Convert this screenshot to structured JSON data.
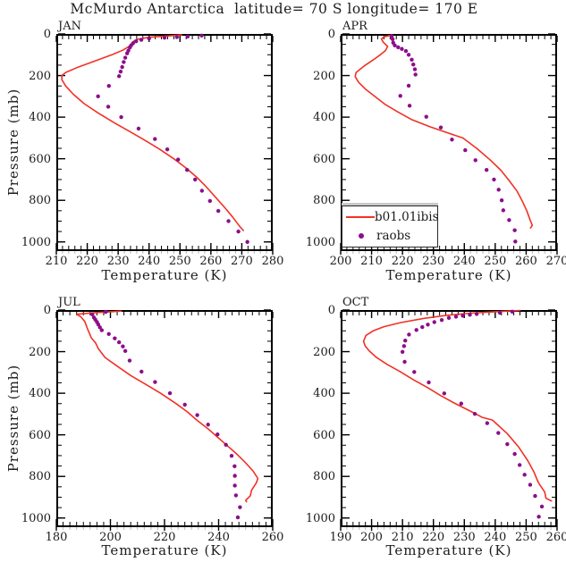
{
  "title": "McMurdo Antarctica  latitude= 70 S longitude= 170 E",
  "xlabel": "Temperature (K)",
  "ylabel": "Pressure (mb)",
  "colors": {
    "model": "#f13126",
    "obs": "#8b0e8b",
    "axis": "#000000",
    "minor_outward": "#b9b9b9"
  },
  "legend": {
    "entries": [
      {
        "label": "b01.01ibis",
        "type": "line"
      },
      {
        "label": "raobs",
        "type": "dot"
      }
    ]
  },
  "chart_data": [
    {
      "type": "line",
      "month": "JAN",
      "xlabel": "Temperature (K)",
      "ylabel": "Pressure (mb)",
      "xlim": [
        210,
        280
      ],
      "xticks": [
        210,
        220,
        230,
        240,
        250,
        260,
        270,
        280
      ],
      "xminor": 2,
      "ylim": [
        0,
        1044
      ],
      "yticks": [
        0,
        200,
        400,
        600,
        800,
        1000
      ],
      "yminor": 50,
      "y_axis_inverted": true,
      "grid": false,
      "series": [
        {
          "name": "b01.01ibis",
          "style": "line",
          "points": [
            [
              250.5,
              4
            ],
            [
              246,
              10
            ],
            [
              240,
              16
            ],
            [
              236.5,
              25
            ],
            [
              235,
              35
            ],
            [
              234.3,
              48
            ],
            [
              233.5,
              60
            ],
            [
              231.5,
              78
            ],
            [
              228,
              100
            ],
            [
              222.5,
              130
            ],
            [
              217,
              160
            ],
            [
              213,
              185
            ],
            [
              211.8,
              200
            ],
            [
              211.8,
              220
            ],
            [
              213,
              250
            ],
            [
              215.5,
              290
            ],
            [
              219,
              335
            ],
            [
              223.5,
              380
            ],
            [
              228.5,
              425
            ],
            [
              233.5,
              467
            ],
            [
              238.5,
              510
            ],
            [
              243.5,
              555
            ],
            [
              248,
              600
            ],
            [
              252,
              645
            ],
            [
              255.5,
              690
            ],
            [
              258.5,
              735
            ],
            [
              261.5,
              785
            ],
            [
              264.5,
              835
            ],
            [
              267,
              880
            ],
            [
              269.3,
              925
            ],
            [
              270.5,
              945
            ]
          ]
        },
        {
          "name": "raobs",
          "style": "scatter",
          "points": [
            [
              257,
              8
            ],
            [
              252.5,
              12
            ],
            [
              249,
              15
            ],
            [
              245,
              18
            ],
            [
              240,
              22
            ],
            [
              237.5,
              28
            ],
            [
              235.8,
              35
            ],
            [
              234.8,
              45
            ],
            [
              234.2,
              55
            ],
            [
              233.8,
              65
            ],
            [
              233.3,
              80
            ],
            [
              232.9,
              93
            ],
            [
              232.3,
              114
            ],
            [
              231.8,
              135
            ],
            [
              231.3,
              159
            ],
            [
              230.8,
              181
            ],
            [
              230.3,
              203
            ],
            [
              227,
              250
            ],
            [
              223.5,
              300
            ],
            [
              226.8,
              350
            ],
            [
              231,
              400
            ],
            [
              236.6,
              455
            ],
            [
              241.9,
              505
            ],
            [
              245.9,
              555
            ],
            [
              249.4,
              604
            ],
            [
              252.3,
              654
            ],
            [
              254.9,
              700
            ],
            [
              257.1,
              754
            ],
            [
              259.7,
              803
            ],
            [
              262.4,
              851
            ],
            [
              265.7,
              900
            ],
            [
              268.9,
              950
            ],
            [
              271.8,
              1000
            ]
          ]
        }
      ]
    },
    {
      "type": "line",
      "month": "APR",
      "xlabel": "Temperature (K)",
      "ylabel": "Pressure (mb)",
      "xlim": [
        200,
        270
      ],
      "xticks": [
        200,
        210,
        220,
        230,
        240,
        250,
        260,
        270
      ],
      "xminor": 2,
      "ylim": [
        0,
        1044
      ],
      "yticks": [
        0,
        200,
        400,
        600,
        800,
        1000
      ],
      "yminor": 50,
      "y_axis_inverted": true,
      "grid": false,
      "has_legend": true,
      "series": [
        {
          "name": "b01.01ibis",
          "style": "line",
          "points": [
            [
              216.3,
              6
            ],
            [
              214,
              14
            ],
            [
              213.2,
              24
            ],
            [
              213.8,
              40
            ],
            [
              215.2,
              60
            ],
            [
              214.5,
              80
            ],
            [
              212.8,
              100
            ],
            [
              210.5,
              125
            ],
            [
              207.5,
              155
            ],
            [
              205,
              185
            ],
            [
              204.7,
              205
            ],
            [
              205.8,
              233
            ],
            [
              208,
              265
            ],
            [
              211,
              300
            ],
            [
              214.5,
              340
            ],
            [
              218.5,
              375
            ],
            [
              223,
              412
            ],
            [
              228.7,
              445
            ],
            [
              233.5,
              470
            ],
            [
              239.5,
              500
            ],
            [
              244,
              550
            ],
            [
              248.3,
              605
            ],
            [
              251.8,
              655
            ],
            [
              254.5,
              705
            ],
            [
              257,
              755
            ],
            [
              258.8,
              805
            ],
            [
              260.2,
              850
            ],
            [
              261.3,
              895
            ],
            [
              262,
              920
            ],
            [
              261.4,
              933
            ]
          ]
        },
        {
          "name": "raobs",
          "style": "scatter",
          "points": [
            [
              216.5,
              10
            ],
            [
              216.8,
              25
            ],
            [
              217,
              42
            ],
            [
              217.5,
              55
            ],
            [
              218.6,
              64
            ],
            [
              219.8,
              72
            ],
            [
              221.1,
              82
            ],
            [
              222,
              100
            ],
            [
              223,
              124
            ],
            [
              223.5,
              147
            ],
            [
              224,
              170
            ],
            [
              224.2,
              195
            ],
            [
              222,
              249
            ],
            [
              219.3,
              298
            ],
            [
              222.3,
              345
            ],
            [
              227.7,
              398
            ],
            [
              232.4,
              450
            ],
            [
              236,
              508
            ],
            [
              240.3,
              559
            ],
            [
              243.6,
              607
            ],
            [
              247.2,
              654
            ],
            [
              249.6,
              700
            ],
            [
              251.1,
              749
            ],
            [
              252.1,
              800
            ],
            [
              252.6,
              848
            ],
            [
              254.5,
              895
            ],
            [
              256.3,
              944
            ],
            [
              256.5,
              998
            ]
          ]
        }
      ]
    },
    {
      "type": "line",
      "month": "JUL",
      "xlabel": "Temperature (K)",
      "ylabel": "Pressure (mb)",
      "xlim": [
        180,
        260
      ],
      "xticks": [
        180,
        200,
        220,
        240,
        260
      ],
      "xminor": 2.5,
      "ylim": [
        0,
        1044
      ],
      "yticks": [
        0,
        200,
        400,
        600,
        800,
        1000
      ],
      "yminor": 50,
      "y_axis_inverted": true,
      "grid": false,
      "series": [
        {
          "name": "b01.01ibis",
          "style": "line",
          "points": [
            [
              204,
              5
            ],
            [
              195,
              12
            ],
            [
              187.5,
              20
            ],
            [
              189,
              32
            ],
            [
              190.5,
              55
            ],
            [
              191.5,
              90
            ],
            [
              193,
              135
            ],
            [
              194.5,
              158
            ],
            [
              195.5,
              185
            ],
            [
              198,
              228
            ],
            [
              202.5,
              270
            ],
            [
              207.5,
              315
            ],
            [
              213,
              357
            ],
            [
              218.5,
              400
            ],
            [
              224.5,
              452
            ],
            [
              228.5,
              490
            ],
            [
              232,
              530
            ],
            [
              236,
              570
            ],
            [
              239.5,
              610
            ],
            [
              243,
              650
            ],
            [
              246.5,
              690
            ],
            [
              250,
              735
            ],
            [
              252.8,
              775
            ],
            [
              254.5,
              810
            ],
            [
              253.9,
              832
            ],
            [
              252.2,
              866
            ],
            [
              251.7,
              893
            ],
            [
              250,
              915
            ],
            [
              250.3,
              922
            ]
          ]
        },
        {
          "name": "raobs",
          "style": "scatter",
          "points": [
            [
              198.3,
              9
            ],
            [
              193.3,
              21
            ],
            [
              193.9,
              36
            ],
            [
              194.4,
              46
            ],
            [
              195,
              57
            ],
            [
              195.5,
              69
            ],
            [
              196.1,
              83
            ],
            [
              196.8,
              97
            ],
            [
              199.4,
              115
            ],
            [
              201.6,
              136
            ],
            [
              203.2,
              155
            ],
            [
              204.6,
              175
            ],
            [
              205.5,
              197
            ],
            [
              207.1,
              243
            ],
            [
              211.5,
              296
            ],
            [
              216.5,
              346
            ],
            [
              222,
              400
            ],
            [
              227.5,
              455
            ],
            [
              232.1,
              505
            ],
            [
              236.1,
              551
            ],
            [
              239.6,
              598
            ],
            [
              242.7,
              648
            ],
            [
              244.8,
              701
            ],
            [
              245.9,
              751
            ],
            [
              246,
              797
            ],
            [
              246,
              844
            ],
            [
              246.4,
              891
            ],
            [
              247.9,
              948
            ],
            [
              247.1,
              997
            ]
          ]
        }
      ]
    },
    {
      "type": "line",
      "month": "OCT",
      "xlabel": "Temperature (K)",
      "ylabel": "Pressure (mb)",
      "xlim": [
        190,
        260
      ],
      "xticks": [
        190,
        200,
        210,
        220,
        230,
        240,
        250,
        260
      ],
      "xminor": 2,
      "ylim": [
        0,
        1044
      ],
      "yticks": [
        0,
        200,
        400,
        600,
        800,
        1000
      ],
      "yminor": 50,
      "y_axis_inverted": true,
      "grid": false,
      "series": [
        {
          "name": "b01.01ibis",
          "style": "line",
          "points": [
            [
              248,
              2
            ],
            [
              240,
              8
            ],
            [
              232,
              15
            ],
            [
              224,
              26
            ],
            [
              217,
              40
            ],
            [
              209.5,
              60
            ],
            [
              204,
              80
            ],
            [
              200.5,
              100
            ],
            [
              198.2,
              122
            ],
            [
              197.4,
              150
            ],
            [
              197.9,
              172
            ],
            [
              199.2,
              196
            ],
            [
              201.6,
              228
            ],
            [
              205,
              261
            ],
            [
              209.3,
              297
            ],
            [
              213.6,
              336
            ],
            [
              218,
              372
            ],
            [
              222.3,
              411
            ],
            [
              226.7,
              447
            ],
            [
              231.5,
              483
            ],
            [
              235.8,
              516
            ],
            [
              239.1,
              529
            ],
            [
              243.9,
              594
            ],
            [
              247.6,
              659
            ],
            [
              250.5,
              724
            ],
            [
              252.6,
              781
            ],
            [
              253.6,
              818
            ],
            [
              254.3,
              838
            ],
            [
              256,
              875
            ],
            [
              256.4,
              905
            ],
            [
              258.2,
              918
            ]
          ]
        },
        {
          "name": "raobs",
          "style": "scatter",
          "points": [
            [
              245.5,
              8
            ],
            [
              241.5,
              13
            ],
            [
              234,
              19
            ],
            [
              231.8,
              23
            ],
            [
              229.5,
              27
            ],
            [
              227.3,
              32
            ],
            [
              225,
              38
            ],
            [
              222.7,
              48
            ],
            [
              220.3,
              58
            ],
            [
              218.2,
              70
            ],
            [
              216.4,
              82
            ],
            [
              214.5,
              96
            ],
            [
              212.1,
              118
            ],
            [
              210.9,
              147
            ],
            [
              210.5,
              173
            ],
            [
              210,
              201
            ],
            [
              210.7,
              249
            ],
            [
              213.8,
              298
            ],
            [
              218.5,
              348
            ],
            [
              223.5,
              401
            ],
            [
              229,
              450
            ],
            [
              233.4,
              499
            ],
            [
              237.4,
              544
            ],
            [
              241,
              591
            ],
            [
              243.9,
              645
            ],
            [
              246.3,
              692
            ],
            [
              247.9,
              745
            ],
            [
              249.5,
              792
            ],
            [
              251.3,
              840
            ],
            [
              252.9,
              894
            ],
            [
              255.1,
              945
            ],
            [
              254.1,
              994
            ]
          ]
        }
      ]
    }
  ]
}
